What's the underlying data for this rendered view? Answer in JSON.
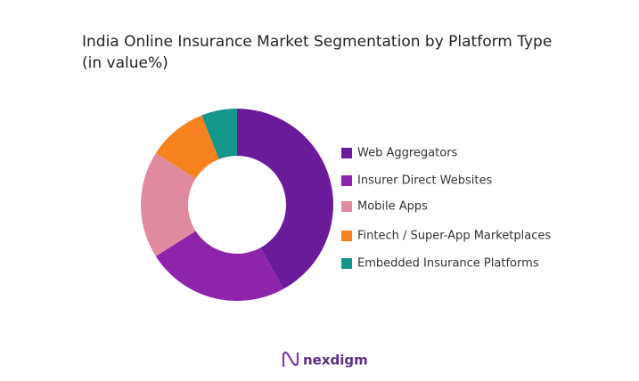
{
  "chart_data": {
    "type": "donut",
    "title": "India Online Insurance Market Segmentation by Platform Type",
    "subtitle": "(in value%)",
    "categories": [
      "Web Aggregators",
      "Insurer Direct Websites",
      "Mobile Apps",
      "Fintech / Super-App Marketplaces",
      "Embedded Insurance Platforms"
    ],
    "values": [
      42,
      24,
      18,
      10,
      6
    ],
    "colors": [
      "#6a1b9a",
      "#8e24aa",
      "#e08a9f",
      "#f5821f",
      "#14968a"
    ],
    "legend": "right"
  },
  "brand": "nexdigm"
}
